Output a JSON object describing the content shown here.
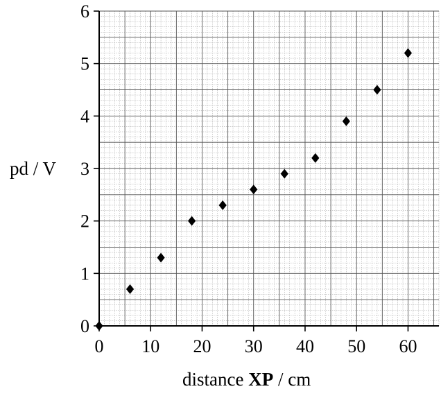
{
  "chart_data": {
    "type": "scatter",
    "title": "",
    "ylabel": "pd / V",
    "xlabel": {
      "prefix": "distance ",
      "bold": "XP",
      "suffix": " / cm"
    },
    "xlim": [
      0,
      66
    ],
    "ylim": [
      0,
      6
    ],
    "x_ticks": [
      0,
      10,
      20,
      30,
      40,
      50,
      60
    ],
    "y_ticks": [
      0,
      1,
      2,
      3,
      4,
      5,
      6
    ],
    "grid": true,
    "marker": "diamond",
    "marker_color": "#000000",
    "points": [
      {
        "x": 0,
        "y": 0
      },
      {
        "x": 6,
        "y": 0.7
      },
      {
        "x": 12,
        "y": 1.3
      },
      {
        "x": 18,
        "y": 2.0
      },
      {
        "x": 24,
        "y": 2.3
      },
      {
        "x": 30,
        "y": 2.6
      },
      {
        "x": 36,
        "y": 2.9
      },
      {
        "x": 42,
        "y": 3.2
      },
      {
        "x": 48,
        "y": 3.9
      },
      {
        "x": 54,
        "y": 4.5
      },
      {
        "x": 60,
        "y": 5.2
      }
    ]
  }
}
